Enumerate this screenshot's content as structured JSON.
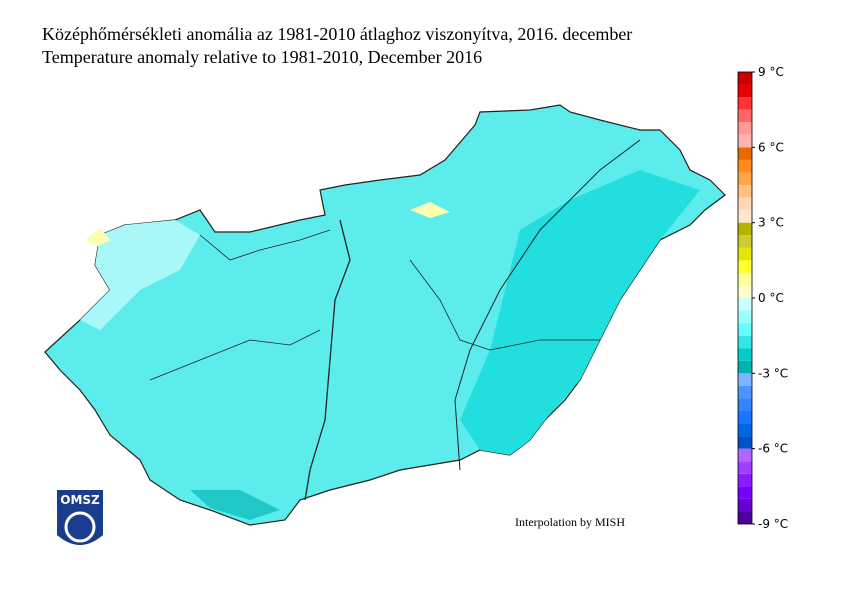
{
  "header": {
    "title_hu": "Középhőmérsékleti anomália az 1981-2010 átlaghoz viszonyítva, 2016. december",
    "title_en": "Temperature anomaly relative to 1981-2010, December 2016"
  },
  "legend": {
    "lim": [
      -9,
      9
    ],
    "colors": [
      "#4d0099",
      "#6600cc",
      "#7a00ff",
      "#8c1aff",
      "#9f40ff",
      "#b366ff",
      "#0052cc",
      "#0066e6",
      "#1a75ff",
      "#3385ff",
      "#4d94ff",
      "#80b3ff",
      "#00b3b3",
      "#00cccc",
      "#33e6e6",
      "#66ffff",
      "#99ffff",
      "#ccffff",
      "#ffffcc",
      "#ffff99",
      "#ffff33",
      "#e6e600",
      "#cccc33",
      "#b3b300",
      "#ffe6cc",
      "#ffd9b3",
      "#ffc080",
      "#ffa64d",
      "#ff8c1a",
      "#e66a00",
      "#ffb3b3",
      "#ff9999",
      "#ff6666",
      "#ff3333",
      "#e60000",
      "#cc0000"
    ],
    "ticks": [
      {
        "value": 9,
        "label": "9 °C"
      },
      {
        "value": 6,
        "label": "6 °C"
      },
      {
        "value": 3,
        "label": "3 °C"
      },
      {
        "value": 0,
        "label": "0 °C"
      },
      {
        "value": -3,
        "label": "-3 °C"
      },
      {
        "value": -6,
        "label": "-6 °C"
      },
      {
        "value": -9,
        "label": "-9 °C"
      }
    ]
  },
  "note": "Interpolation by MISH",
  "logo": "OMSZ"
}
